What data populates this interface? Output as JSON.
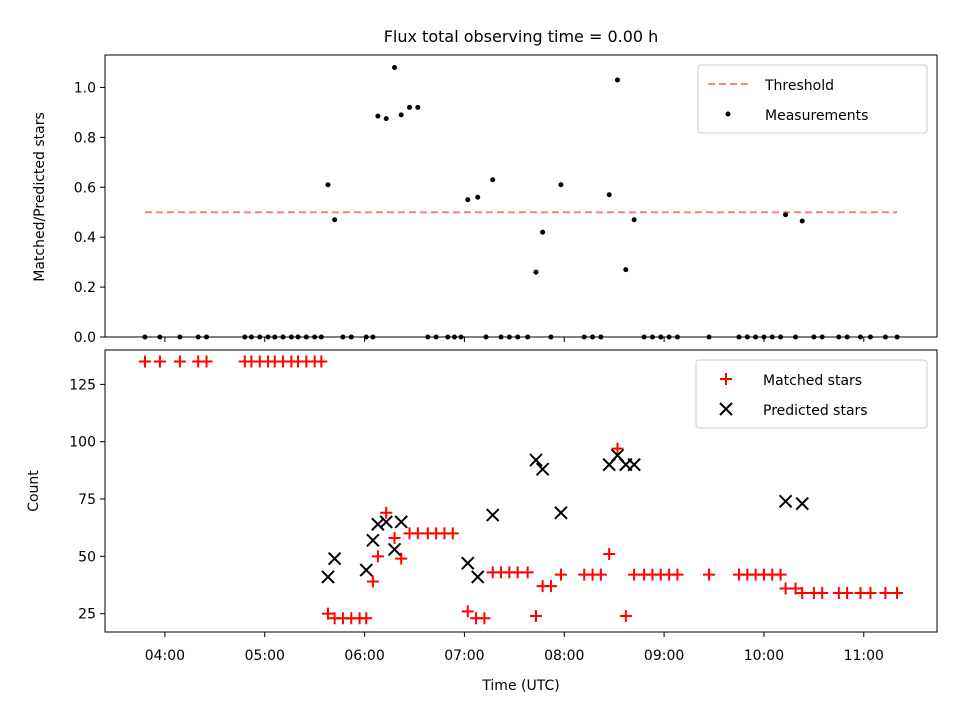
{
  "chart_data": [
    {
      "type": "scatter",
      "title": "Flux total observing time = 0.00 h",
      "ylabel": "Matched/Predicted stars",
      "xlabel": "",
      "xlim": [
        "03:24",
        "11:44"
      ],
      "ylim": [
        0,
        1.13
      ],
      "x_ticks": [
        "04:00",
        "05:00",
        "06:00",
        "07:00",
        "08:00",
        "09:00",
        "10:00",
        "11:00"
      ],
      "y_ticks": [
        "0.0",
        "0.2",
        "0.4",
        "0.6",
        "0.8",
        "1.0"
      ],
      "legend": {
        "placement": "top-right",
        "entries": [
          "Threshold",
          "Measurements"
        ]
      },
      "threshold": {
        "name": "Threshold",
        "value": 0.5,
        "x_range": [
          "03:48",
          "11:20"
        ],
        "color": "#ff7f7f",
        "style": "dashed"
      },
      "series": [
        {
          "name": "Measurements",
          "marker": "dot",
          "color": "#000000",
          "points": [
            [
              "03:48",
              0
            ],
            [
              "03:57",
              0
            ],
            [
              "04:09",
              0
            ],
            [
              "04:20",
              0
            ],
            [
              "04:25",
              0
            ],
            [
              "04:48",
              0
            ],
            [
              "04:52",
              0
            ],
            [
              "04:57",
              0
            ],
            [
              "05:02",
              0
            ],
            [
              "05:06",
              0
            ],
            [
              "05:11",
              0
            ],
            [
              "05:16",
              0
            ],
            [
              "05:20",
              0
            ],
            [
              "05:25",
              0
            ],
            [
              "05:30",
              0
            ],
            [
              "05:34",
              0
            ],
            [
              "05:38",
              0.61
            ],
            [
              "05:42",
              0.47
            ],
            [
              "05:47",
              0
            ],
            [
              "05:52",
              0
            ],
            [
              "06:01",
              0
            ],
            [
              "06:05",
              0
            ],
            [
              "06:08",
              0.885
            ],
            [
              "06:13",
              0.875
            ],
            [
              "06:18",
              1.08
            ],
            [
              "06:22",
              0.89
            ],
            [
              "06:27",
              0.92
            ],
            [
              "06:32",
              0.92
            ],
            [
              "06:38",
              0
            ],
            [
              "06:43",
              0
            ],
            [
              "06:50",
              0
            ],
            [
              "06:54",
              0
            ],
            [
              "06:58",
              0
            ],
            [
              "07:02",
              0.55
            ],
            [
              "07:08",
              0.56
            ],
            [
              "07:13",
              0
            ],
            [
              "07:17",
              0.63
            ],
            [
              "07:22",
              0
            ],
            [
              "07:27",
              0
            ],
            [
              "07:32",
              0
            ],
            [
              "07:38",
              0
            ],
            [
              "07:43",
              0.26
            ],
            [
              "07:47",
              0.42
            ],
            [
              "07:52",
              0
            ],
            [
              "07:58",
              0.61
            ],
            [
              "08:12",
              0
            ],
            [
              "08:17",
              0
            ],
            [
              "08:22",
              0
            ],
            [
              "08:27",
              0.57
            ],
            [
              "08:32",
              1.03
            ],
            [
              "08:37",
              0.27
            ],
            [
              "08:42",
              0.47
            ],
            [
              "08:48",
              0
            ],
            [
              "08:53",
              0
            ],
            [
              "08:58",
              0
            ],
            [
              "09:03",
              0
            ],
            [
              "09:08",
              0
            ],
            [
              "09:27",
              0
            ],
            [
              "09:45",
              0
            ],
            [
              "09:50",
              0
            ],
            [
              "09:55",
              0
            ],
            [
              "10:00",
              0
            ],
            [
              "10:05",
              0
            ],
            [
              "10:10",
              0
            ],
            [
              "10:13",
              0.49
            ],
            [
              "10:19",
              0
            ],
            [
              "10:23",
              0.465
            ],
            [
              "10:30",
              0
            ],
            [
              "10:35",
              0
            ],
            [
              "10:45",
              0
            ],
            [
              "10:50",
              0
            ],
            [
              "10:58",
              0
            ],
            [
              "11:04",
              0
            ],
            [
              "11:13",
              0
            ],
            [
              "11:20",
              0
            ]
          ]
        }
      ]
    },
    {
      "type": "scatter",
      "title": "",
      "ylabel": "Count",
      "xlabel": "Time (UTC)",
      "xlim": [
        "03:24",
        "11:44"
      ],
      "ylim": [
        17,
        140
      ],
      "x_ticks": [
        "04:00",
        "05:00",
        "06:00",
        "07:00",
        "08:00",
        "09:00",
        "10:00",
        "11:00"
      ],
      "y_ticks": [
        "25",
        "50",
        "75",
        "100",
        "125"
      ],
      "legend": {
        "placement": "top-right",
        "entries": [
          "Matched stars",
          "Predicted stars"
        ]
      },
      "series": [
        {
          "name": "Matched stars",
          "marker": "plus",
          "color": "#ff0000",
          "points": [
            [
              "03:48",
              135
            ],
            [
              "03:57",
              135
            ],
            [
              "04:09",
              135
            ],
            [
              "04:20",
              135
            ],
            [
              "04:25",
              135
            ],
            [
              "04:48",
              135
            ],
            [
              "04:52",
              135
            ],
            [
              "04:57",
              135
            ],
            [
              "05:02",
              135
            ],
            [
              "05:06",
              135
            ],
            [
              "05:11",
              135
            ],
            [
              "05:16",
              135
            ],
            [
              "05:20",
              135
            ],
            [
              "05:25",
              135
            ],
            [
              "05:30",
              135
            ],
            [
              "05:34",
              135
            ],
            [
              "05:38",
              25
            ],
            [
              "05:42",
              23
            ],
            [
              "05:47",
              23
            ],
            [
              "05:52",
              23
            ],
            [
              "05:57",
              23
            ],
            [
              "06:01",
              23
            ],
            [
              "06:05",
              39
            ],
            [
              "06:08",
              50
            ],
            [
              "06:13",
              69
            ],
            [
              "06:18",
              58
            ],
            [
              "06:22",
              49
            ],
            [
              "06:27",
              60
            ],
            [
              "06:32",
              60
            ],
            [
              "06:38",
              60
            ],
            [
              "06:43",
              60
            ],
            [
              "06:48",
              60
            ],
            [
              "06:53",
              60
            ],
            [
              "07:02",
              26
            ],
            [
              "07:07",
              23
            ],
            [
              "07:12",
              23
            ],
            [
              "07:17",
              43
            ],
            [
              "07:22",
              43
            ],
            [
              "07:27",
              43
            ],
            [
              "07:32",
              43
            ],
            [
              "07:38",
              43
            ],
            [
              "07:43",
              24
            ],
            [
              "07:47",
              37
            ],
            [
              "07:52",
              37
            ],
            [
              "07:58",
              42
            ],
            [
              "08:12",
              42
            ],
            [
              "08:17",
              42
            ],
            [
              "08:22",
              42
            ],
            [
              "08:27",
              51
            ],
            [
              "08:32",
              97
            ],
            [
              "08:37",
              24
            ],
            [
              "08:42",
              42
            ],
            [
              "08:48",
              42
            ],
            [
              "08:53",
              42
            ],
            [
              "08:58",
              42
            ],
            [
              "09:03",
              42
            ],
            [
              "09:08",
              42
            ],
            [
              "09:27",
              42
            ],
            [
              "09:45",
              42
            ],
            [
              "09:50",
              42
            ],
            [
              "09:55",
              42
            ],
            [
              "10:00",
              42
            ],
            [
              "10:05",
              42
            ],
            [
              "10:10",
              42
            ],
            [
              "10:13",
              36
            ],
            [
              "10:19",
              36
            ],
            [
              "10:23",
              34
            ],
            [
              "10:30",
              34
            ],
            [
              "10:35",
              34
            ],
            [
              "10:45",
              34
            ],
            [
              "10:50",
              34
            ],
            [
              "10:58",
              34
            ],
            [
              "11:04",
              34
            ],
            [
              "11:13",
              34
            ],
            [
              "11:20",
              34
            ]
          ]
        },
        {
          "name": "Predicted stars",
          "marker": "x",
          "color": "#000000",
          "points": [
            [
              "05:38",
              41
            ],
            [
              "05:42",
              49
            ],
            [
              "06:01",
              44
            ],
            [
              "06:05",
              57
            ],
            [
              "06:08",
              64
            ],
            [
              "06:13",
              65
            ],
            [
              "06:18",
              53
            ],
            [
              "06:22",
              65
            ],
            [
              "07:02",
              47
            ],
            [
              "07:08",
              41
            ],
            [
              "07:17",
              68
            ],
            [
              "07:43",
              92
            ],
            [
              "07:47",
              88
            ],
            [
              "07:58",
              69
            ],
            [
              "08:27",
              90
            ],
            [
              "08:32",
              94
            ],
            [
              "08:37",
              90
            ],
            [
              "08:42",
              90
            ],
            [
              "10:13",
              74
            ],
            [
              "10:23",
              73
            ]
          ]
        }
      ]
    }
  ]
}
